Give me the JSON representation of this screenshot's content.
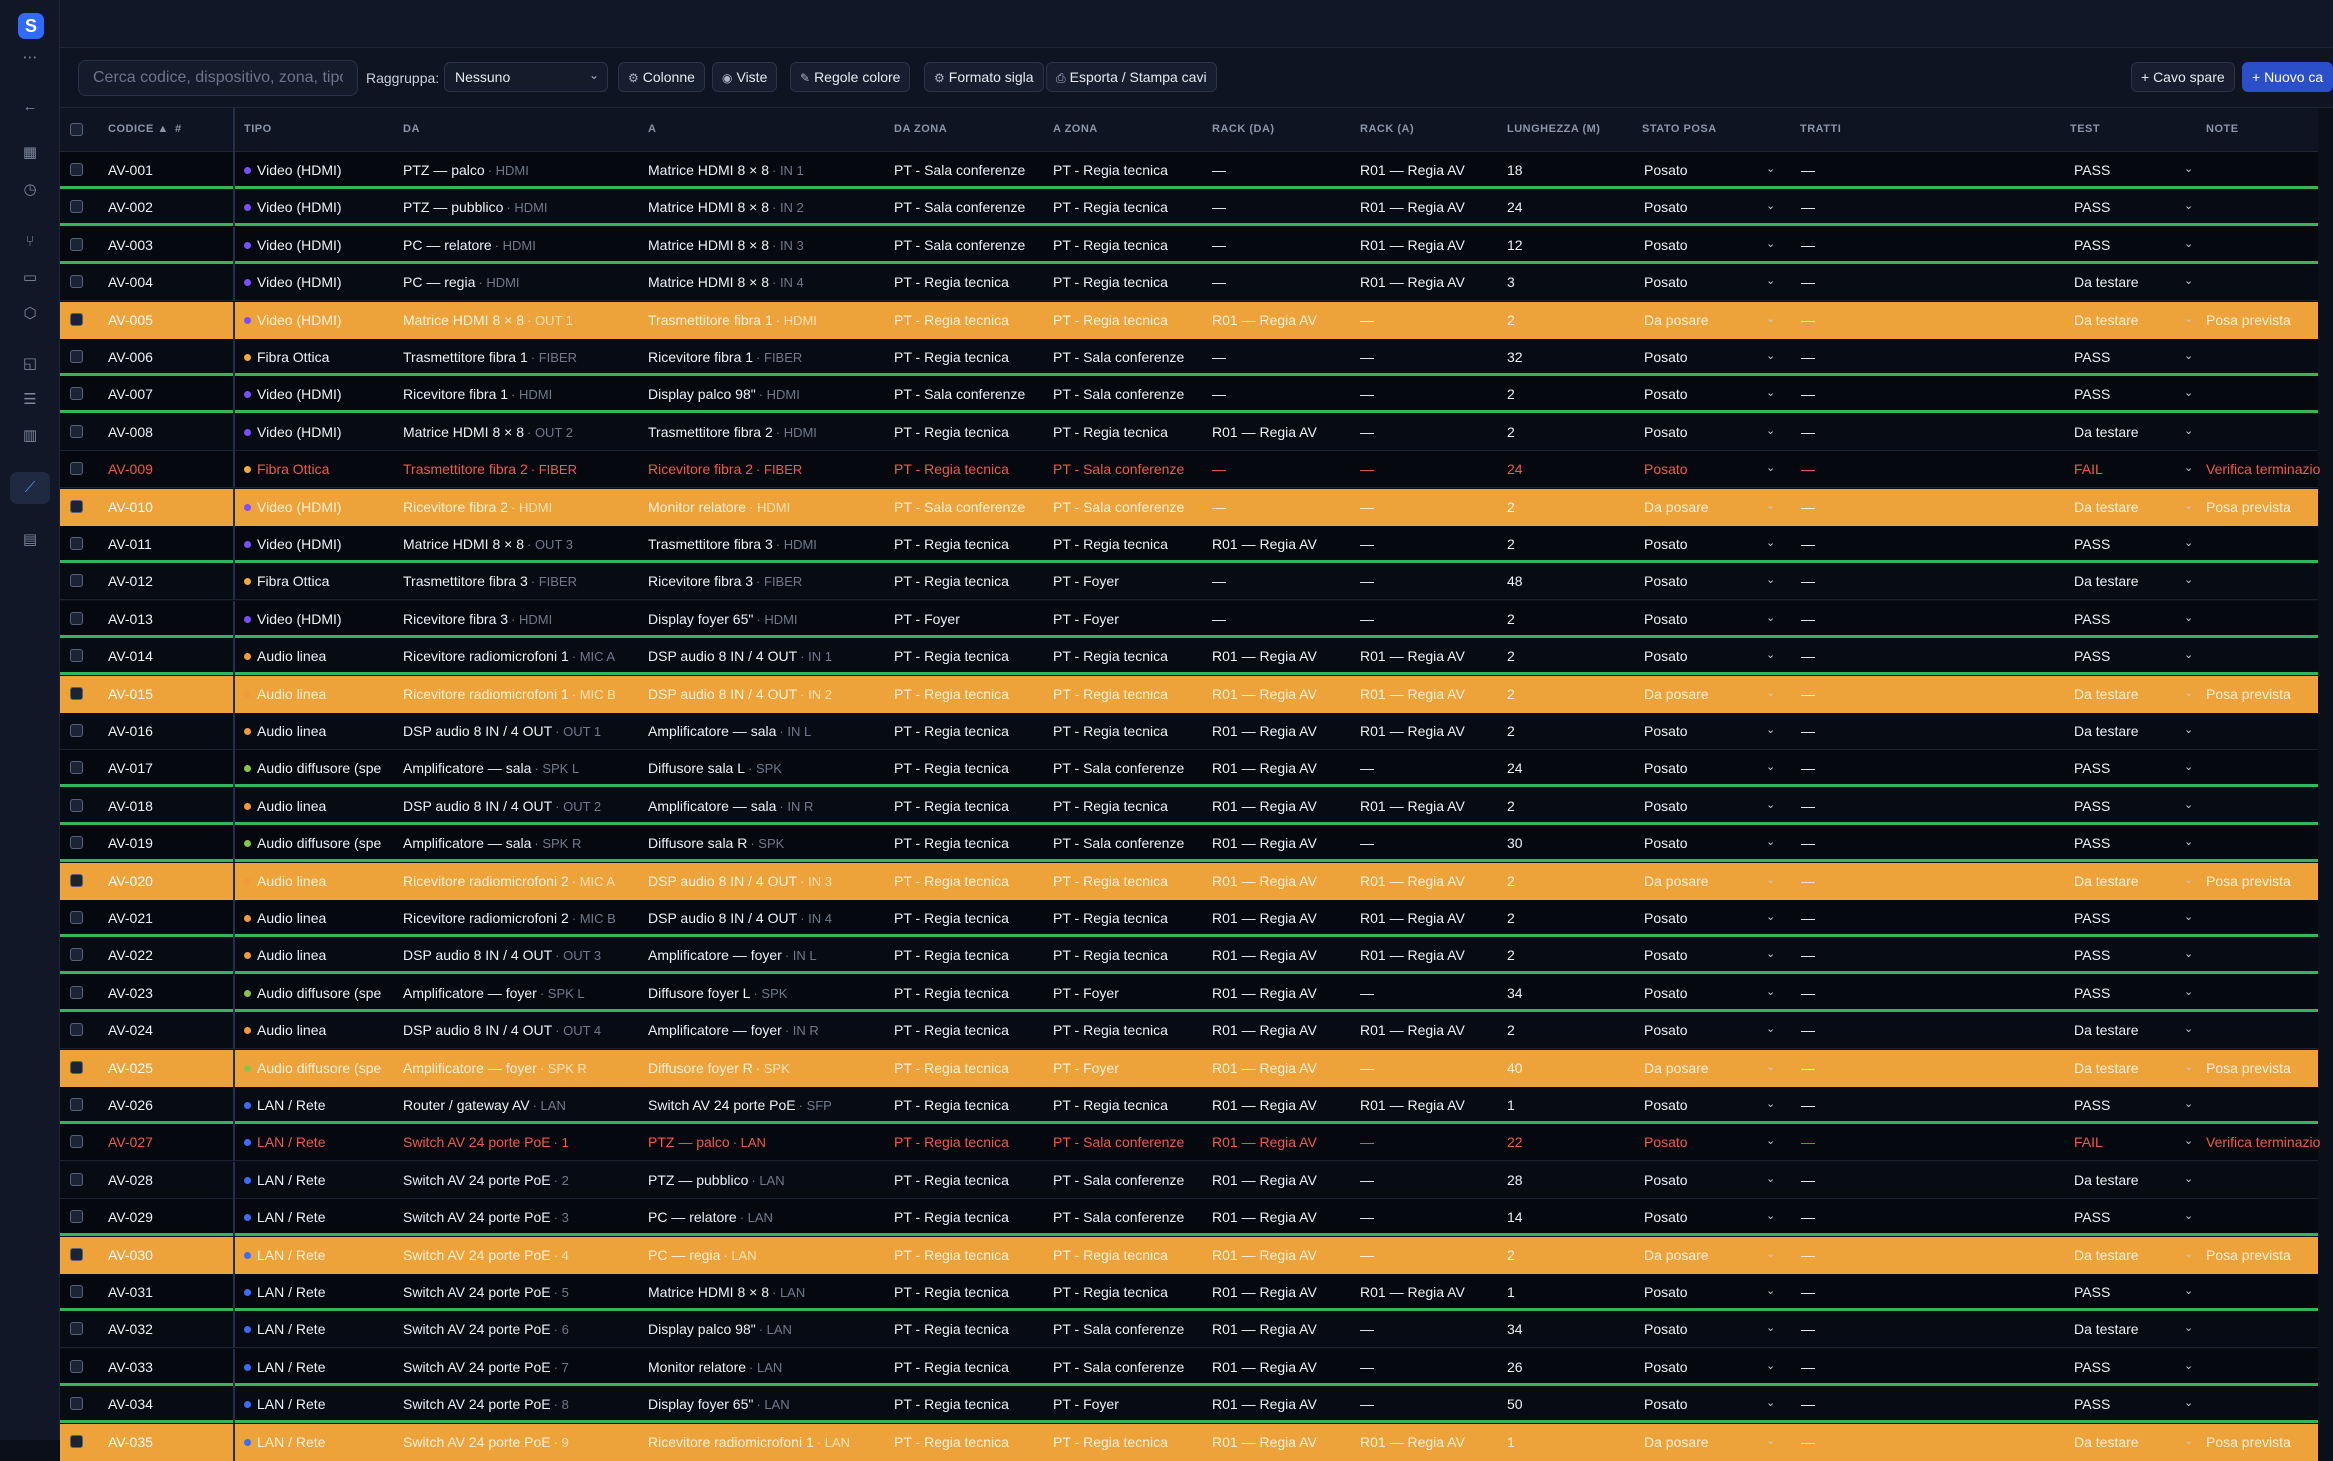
{
  "app": {
    "logo_letter": "S"
  },
  "toolbar": {
    "search_placeholder": "Cerca codice, dispositivo, zona, tipo",
    "group_label": "Raggruppa:",
    "group_value": "Nessuno",
    "btn_columns": "Colonne",
    "btn_views": "Viste",
    "btn_color_rules": "Regole colore",
    "btn_format": "Formato sigla",
    "btn_export": "Esporta / Stampa cavi",
    "btn_spare": "+ Cavo spare",
    "btn_new": "+ Nuovo ca"
  },
  "columns": {
    "code": "CODICE ▲",
    "hash": "#",
    "type": "TIPO",
    "from": "DA",
    "to": "A",
    "from_zone": "DA ZONA",
    "to_zone": "A ZONA",
    "rack_from": "RACK (DA)",
    "rack_to": "RACK (A)",
    "length": "LUNGHEZZA (M)",
    "status": "STATO POSA",
    "segments": "TRATTI",
    "test": "TEST",
    "notes": "NOTE"
  },
  "colors": {
    "video": "#7c4dff",
    "fiber": "#f2a93b",
    "audio": "#f29a3b",
    "speaker": "#8bc34a",
    "lan": "#3d6bff",
    "highlight": "#eda23a",
    "fail": "#f2584b",
    "pass_bar": "#35b55a"
  },
  "rows": [
    {
      "code": "AV-001",
      "type": "Video (HDMI)",
      "tcolor": "#7c4dff",
      "from": "PTZ — palco",
      "from_port": "HDMI",
      "to": "Matrice HDMI 8 × 8",
      "to_port": "IN 1",
      "from_zone": "PT - Sala conferenze",
      "to_zone": "PT - Regia tecnica",
      "rack_from": "—",
      "rack_to": "R01 — Regia AV",
      "length": "18",
      "status": "Posato",
      "segments": "—",
      "test": "PASS",
      "notes": "",
      "style": "pass"
    },
    {
      "code": "AV-002",
      "type": "Video (HDMI)",
      "tcolor": "#7c4dff",
      "from": "PTZ — pubblico",
      "from_port": "HDMI",
      "to": "Matrice HDMI 8 × 8",
      "to_port": "IN 2",
      "from_zone": "PT - Sala conferenze",
      "to_zone": "PT - Regia tecnica",
      "rack_from": "—",
      "rack_to": "R01 — Regia AV",
      "length": "24",
      "status": "Posato",
      "segments": "—",
      "test": "PASS",
      "notes": "",
      "style": "pass"
    },
    {
      "code": "AV-003",
      "type": "Video (HDMI)",
      "tcolor": "#7c4dff",
      "from": "PC — relatore",
      "from_port": "HDMI",
      "to": "Matrice HDMI 8 × 8",
      "to_port": "IN 3",
      "from_zone": "PT - Sala conferenze",
      "to_zone": "PT - Regia tecnica",
      "rack_from": "—",
      "rack_to": "R01 — Regia AV",
      "length": "12",
      "status": "Posato",
      "segments": "—",
      "test": "PASS",
      "notes": "",
      "style": "pass"
    },
    {
      "code": "AV-004",
      "type": "Video (HDMI)",
      "tcolor": "#7c4dff",
      "from": "PC — regia",
      "from_port": "HDMI",
      "to": "Matrice HDMI 8 × 8",
      "to_port": "IN 4",
      "from_zone": "PT - Regia tecnica",
      "to_zone": "PT - Regia tecnica",
      "rack_from": "—",
      "rack_to": "R01 — Regia AV",
      "length": "3",
      "status": "Posato",
      "segments": "—",
      "test": "Da testare",
      "notes": "",
      "style": "plain"
    },
    {
      "code": "AV-005",
      "type": "Video (HDMI)",
      "tcolor": "#7c4dff",
      "from": "Matrice HDMI 8 × 8",
      "from_port": "OUT 1",
      "to": "Trasmettitore fibra 1",
      "to_port": "HDMI",
      "from_zone": "PT - Regia tecnica",
      "to_zone": "PT - Regia tecnica",
      "rack_from": "R01 — Regia AV",
      "rack_to": "—",
      "length": "2",
      "status": "Da posare",
      "segments": "—",
      "test": "Da testare",
      "notes": "Posa prevista",
      "style": "orange"
    },
    {
      "code": "AV-006",
      "type": "Fibra Ottica",
      "tcolor": "#f2a93b",
      "from": "Trasmettitore fibra 1",
      "from_port": "FIBER",
      "to": "Ricevitore fibra 1",
      "to_port": "FIBER",
      "from_zone": "PT - Regia tecnica",
      "to_zone": "PT - Sala conferenze",
      "rack_from": "—",
      "rack_to": "—",
      "length": "32",
      "status": "Posato",
      "segments": "—",
      "test": "PASS",
      "notes": "",
      "style": "pass"
    },
    {
      "code": "AV-007",
      "type": "Video (HDMI)",
      "tcolor": "#7c4dff",
      "from": "Ricevitore fibra 1",
      "from_port": "HDMI",
      "to": "Display palco 98\"",
      "to_port": "HDMI",
      "from_zone": "PT - Sala conferenze",
      "to_zone": "PT - Sala conferenze",
      "rack_from": "—",
      "rack_to": "—",
      "length": "2",
      "status": "Posato",
      "segments": "—",
      "test": "PASS",
      "notes": "",
      "style": "pass"
    },
    {
      "code": "AV-008",
      "type": "Video (HDMI)",
      "tcolor": "#7c4dff",
      "from": "Matrice HDMI 8 × 8",
      "from_port": "OUT 2",
      "to": "Trasmettitore fibra 2",
      "to_port": "HDMI",
      "from_zone": "PT - Regia tecnica",
      "to_zone": "PT - Regia tecnica",
      "rack_from": "R01 — Regia AV",
      "rack_to": "—",
      "length": "2",
      "status": "Posato",
      "segments": "—",
      "test": "Da testare",
      "notes": "",
      "style": "plain"
    },
    {
      "code": "AV-009",
      "type": "Fibra Ottica",
      "tcolor": "#f2a93b",
      "from": "Trasmettitore fibra 2",
      "from_port": "FIBER",
      "to": "Ricevitore fibra 2",
      "to_port": "FIBER",
      "from_zone": "PT - Regia tecnica",
      "to_zone": "PT - Sala conferenze",
      "rack_from": "—",
      "rack_to": "—",
      "length": "24",
      "status": "Posato",
      "segments": "—",
      "test": "FAIL",
      "notes": "Verifica terminazio",
      "style": "fail"
    },
    {
      "code": "AV-010",
      "type": "Video (HDMI)",
      "tcolor": "#7c4dff",
      "from": "Ricevitore fibra 2",
      "from_port": "HDMI",
      "to": "Monitor relatore",
      "to_port": "HDMI",
      "from_zone": "PT - Sala conferenze",
      "to_zone": "PT - Sala conferenze",
      "rack_from": "—",
      "rack_to": "—",
      "length": "2",
      "status": "Da posare",
      "segments": "—",
      "test": "Da testare",
      "notes": "Posa prevista",
      "style": "orange"
    },
    {
      "code": "AV-011",
      "type": "Video (HDMI)",
      "tcolor": "#7c4dff",
      "from": "Matrice HDMI 8 × 8",
      "from_port": "OUT 3",
      "to": "Trasmettitore fibra 3",
      "to_port": "HDMI",
      "from_zone": "PT - Regia tecnica",
      "to_zone": "PT - Regia tecnica",
      "rack_from": "R01 — Regia AV",
      "rack_to": "—",
      "length": "2",
      "status": "Posato",
      "segments": "—",
      "test": "PASS",
      "notes": "",
      "style": "pass"
    },
    {
      "code": "AV-012",
      "type": "Fibra Ottica",
      "tcolor": "#f2a93b",
      "from": "Trasmettitore fibra 3",
      "from_port": "FIBER",
      "to": "Ricevitore fibra 3",
      "to_port": "FIBER",
      "from_zone": "PT - Regia tecnica",
      "to_zone": "PT - Foyer",
      "rack_from": "—",
      "rack_to": "—",
      "length": "48",
      "status": "Posato",
      "segments": "—",
      "test": "Da testare",
      "notes": "",
      "style": "plain"
    },
    {
      "code": "AV-013",
      "type": "Video (HDMI)",
      "tcolor": "#7c4dff",
      "from": "Ricevitore fibra 3",
      "from_port": "HDMI",
      "to": "Display foyer 65\"",
      "to_port": "HDMI",
      "from_zone": "PT - Foyer",
      "to_zone": "PT - Foyer",
      "rack_from": "—",
      "rack_to": "—",
      "length": "2",
      "status": "Posato",
      "segments": "—",
      "test": "PASS",
      "notes": "",
      "style": "pass"
    },
    {
      "code": "AV-014",
      "type": "Audio linea",
      "tcolor": "#f29a3b",
      "from": "Ricevitore radiomicrofoni 1",
      "from_port": "MIC A",
      "to": "DSP audio 8 IN / 4 OUT",
      "to_port": "IN 1",
      "from_zone": "PT - Regia tecnica",
      "to_zone": "PT - Regia tecnica",
      "rack_from": "R01 — Regia AV",
      "rack_to": "R01 — Regia AV",
      "length": "2",
      "status": "Posato",
      "segments": "—",
      "test": "PASS",
      "notes": "",
      "style": "pass"
    },
    {
      "code": "AV-015",
      "type": "Audio linea",
      "tcolor": "#f29a3b",
      "from": "Ricevitore radiomicrofoni 1",
      "from_port": "MIC B",
      "to": "DSP audio 8 IN / 4 OUT",
      "to_port": "IN 2",
      "from_zone": "PT - Regia tecnica",
      "to_zone": "PT - Regia tecnica",
      "rack_from": "R01 — Regia AV",
      "rack_to": "R01 — Regia AV",
      "length": "2",
      "status": "Da posare",
      "segments": "—",
      "test": "Da testare",
      "notes": "Posa prevista",
      "style": "orange"
    },
    {
      "code": "AV-016",
      "type": "Audio linea",
      "tcolor": "#f29a3b",
      "from": "DSP audio 8 IN / 4 OUT",
      "from_port": "OUT 1",
      "to": "Amplificatore — sala",
      "to_port": "IN L",
      "from_zone": "PT - Regia tecnica",
      "to_zone": "PT - Regia tecnica",
      "rack_from": "R01 — Regia AV",
      "rack_to": "R01 — Regia AV",
      "length": "2",
      "status": "Posato",
      "segments": "—",
      "test": "Da testare",
      "notes": "",
      "style": "plain"
    },
    {
      "code": "AV-017",
      "type": "Audio diffusore (spe",
      "tcolor": "#8bc34a",
      "from": "Amplificatore — sala",
      "from_port": "SPK L",
      "to": "Diffusore sala L",
      "to_port": "SPK",
      "from_zone": "PT - Regia tecnica",
      "to_zone": "PT - Sala conferenze",
      "rack_from": "R01 — Regia AV",
      "rack_to": "—",
      "length": "24",
      "status": "Posato",
      "segments": "—",
      "test": "PASS",
      "notes": "",
      "style": "pass"
    },
    {
      "code": "AV-018",
      "type": "Audio linea",
      "tcolor": "#f29a3b",
      "from": "DSP audio 8 IN / 4 OUT",
      "from_port": "OUT 2",
      "to": "Amplificatore — sala",
      "to_port": "IN R",
      "from_zone": "PT - Regia tecnica",
      "to_zone": "PT - Regia tecnica",
      "rack_from": "R01 — Regia AV",
      "rack_to": "R01 — Regia AV",
      "length": "2",
      "status": "Posato",
      "segments": "—",
      "test": "PASS",
      "notes": "",
      "style": "pass"
    },
    {
      "code": "AV-019",
      "type": "Audio diffusore (spe",
      "tcolor": "#8bc34a",
      "from": "Amplificatore — sala",
      "from_port": "SPK R",
      "to": "Diffusore sala R",
      "to_port": "SPK",
      "from_zone": "PT - Regia tecnica",
      "to_zone": "PT - Sala conferenze",
      "rack_from": "R01 — Regia AV",
      "rack_to": "—",
      "length": "30",
      "status": "Posato",
      "segments": "—",
      "test": "PASS",
      "notes": "",
      "style": "pass"
    },
    {
      "code": "AV-020",
      "type": "Audio linea",
      "tcolor": "#f29a3b",
      "from": "Ricevitore radiomicrofoni 2",
      "from_port": "MIC A",
      "to": "DSP audio 8 IN / 4 OUT",
      "to_port": "IN 3",
      "from_zone": "PT - Regia tecnica",
      "to_zone": "PT - Regia tecnica",
      "rack_from": "R01 — Regia AV",
      "rack_to": "R01 — Regia AV",
      "length": "2",
      "status": "Da posare",
      "segments": "—",
      "test": "Da testare",
      "notes": "Posa prevista",
      "style": "orange"
    },
    {
      "code": "AV-021",
      "type": "Audio linea",
      "tcolor": "#f29a3b",
      "from": "Ricevitore radiomicrofoni 2",
      "from_port": "MIC B",
      "to": "DSP audio 8 IN / 4 OUT",
      "to_port": "IN 4",
      "from_zone": "PT - Regia tecnica",
      "to_zone": "PT - Regia tecnica",
      "rack_from": "R01 — Regia AV",
      "rack_to": "R01 — Regia AV",
      "length": "2",
      "status": "Posato",
      "segments": "—",
      "test": "PASS",
      "notes": "",
      "style": "pass"
    },
    {
      "code": "AV-022",
      "type": "Audio linea",
      "tcolor": "#f29a3b",
      "from": "DSP audio 8 IN / 4 OUT",
      "from_port": "OUT 3",
      "to": "Amplificatore — foyer",
      "to_port": "IN L",
      "from_zone": "PT - Regia tecnica",
      "to_zone": "PT - Regia tecnica",
      "rack_from": "R01 — Regia AV",
      "rack_to": "R01 — Regia AV",
      "length": "2",
      "status": "Posato",
      "segments": "—",
      "test": "PASS",
      "notes": "",
      "style": "pass"
    },
    {
      "code": "AV-023",
      "type": "Audio diffusore (spe",
      "tcolor": "#8bc34a",
      "from": "Amplificatore — foyer",
      "from_port": "SPK L",
      "to": "Diffusore foyer L",
      "to_port": "SPK",
      "from_zone": "PT - Regia tecnica",
      "to_zone": "PT - Foyer",
      "rack_from": "R01 — Regia AV",
      "rack_to": "—",
      "length": "34",
      "status": "Posato",
      "segments": "—",
      "test": "PASS",
      "notes": "",
      "style": "pass"
    },
    {
      "code": "AV-024",
      "type": "Audio linea",
      "tcolor": "#f29a3b",
      "from": "DSP audio 8 IN / 4 OUT",
      "from_port": "OUT 4",
      "to": "Amplificatore — foyer",
      "to_port": "IN R",
      "from_zone": "PT - Regia tecnica",
      "to_zone": "PT - Regia tecnica",
      "rack_from": "R01 — Regia AV",
      "rack_to": "R01 — Regia AV",
      "length": "2",
      "status": "Posato",
      "segments": "—",
      "test": "Da testare",
      "notes": "",
      "style": "plain"
    },
    {
      "code": "AV-025",
      "type": "Audio diffusore (spe",
      "tcolor": "#8bc34a",
      "from": "Amplificatore — foyer",
      "from_port": "SPK R",
      "to": "Diffusore foyer R",
      "to_port": "SPK",
      "from_zone": "PT - Regia tecnica",
      "to_zone": "PT - Foyer",
      "rack_from": "R01 — Regia AV",
      "rack_to": "—",
      "length": "40",
      "status": "Da posare",
      "segments": "—",
      "test": "Da testare",
      "notes": "Posa prevista",
      "style": "orange"
    },
    {
      "code": "AV-026",
      "type": "LAN / Rete",
      "tcolor": "#3d6bff",
      "from": "Router / gateway AV",
      "from_port": "LAN",
      "to": "Switch AV 24 porte PoE",
      "to_port": "SFP",
      "from_zone": "PT - Regia tecnica",
      "to_zone": "PT - Regia tecnica",
      "rack_from": "R01 — Regia AV",
      "rack_to": "R01 — Regia AV",
      "length": "1",
      "status": "Posato",
      "segments": "—",
      "test": "PASS",
      "notes": "",
      "style": "pass"
    },
    {
      "code": "AV-027",
      "type": "LAN / Rete",
      "tcolor": "#3d6bff",
      "from": "Switch AV 24 porte PoE",
      "from_port": "1",
      "to": "PTZ — palco",
      "to_port": "LAN",
      "from_zone": "PT - Regia tecnica",
      "to_zone": "PT - Sala conferenze",
      "rack_from": "R01 — Regia AV",
      "rack_to": "—",
      "length": "22",
      "status": "Posato",
      "segments": "—",
      "test": "FAIL",
      "notes": "Verifica terminazio",
      "style": "fail"
    },
    {
      "code": "AV-028",
      "type": "LAN / Rete",
      "tcolor": "#3d6bff",
      "from": "Switch AV 24 porte PoE",
      "from_port": "2",
      "to": "PTZ — pubblico",
      "to_port": "LAN",
      "from_zone": "PT - Regia tecnica",
      "to_zone": "PT - Sala conferenze",
      "rack_from": "R01 — Regia AV",
      "rack_to": "—",
      "length": "28",
      "status": "Posato",
      "segments": "—",
      "test": "Da testare",
      "notes": "",
      "style": "plain"
    },
    {
      "code": "AV-029",
      "type": "LAN / Rete",
      "tcolor": "#3d6bff",
      "from": "Switch AV 24 porte PoE",
      "from_port": "3",
      "to": "PC — relatore",
      "to_port": "LAN",
      "from_zone": "PT - Regia tecnica",
      "to_zone": "PT - Sala conferenze",
      "rack_from": "R01 — Regia AV",
      "rack_to": "—",
      "length": "14",
      "status": "Posato",
      "segments": "—",
      "test": "PASS",
      "notes": "",
      "style": "pass"
    },
    {
      "code": "AV-030",
      "type": "LAN / Rete",
      "tcolor": "#3d6bff",
      "from": "Switch AV 24 porte PoE",
      "from_port": "4",
      "to": "PC — regia",
      "to_port": "LAN",
      "from_zone": "PT - Regia tecnica",
      "to_zone": "PT - Regia tecnica",
      "rack_from": "R01 — Regia AV",
      "rack_to": "—",
      "length": "2",
      "status": "Da posare",
      "segments": "—",
      "test": "Da testare",
      "notes": "Posa prevista",
      "style": "orange"
    },
    {
      "code": "AV-031",
      "type": "LAN / Rete",
      "tcolor": "#3d6bff",
      "from": "Switch AV 24 porte PoE",
      "from_port": "5",
      "to": "Matrice HDMI 8 × 8",
      "to_port": "LAN",
      "from_zone": "PT - Regia tecnica",
      "to_zone": "PT - Regia tecnica",
      "rack_from": "R01 — Regia AV",
      "rack_to": "R01 — Regia AV",
      "length": "1",
      "status": "Posato",
      "segments": "—",
      "test": "PASS",
      "notes": "",
      "style": "pass"
    },
    {
      "code": "AV-032",
      "type": "LAN / Rete",
      "tcolor": "#3d6bff",
      "from": "Switch AV 24 porte PoE",
      "from_port": "6",
      "to": "Display palco 98\"",
      "to_port": "LAN",
      "from_zone": "PT - Regia tecnica",
      "to_zone": "PT - Sala conferenze",
      "rack_from": "R01 — Regia AV",
      "rack_to": "—",
      "length": "34",
      "status": "Posato",
      "segments": "—",
      "test": "Da testare",
      "notes": "",
      "style": "plain"
    },
    {
      "code": "AV-033",
      "type": "LAN / Rete",
      "tcolor": "#3d6bff",
      "from": "Switch AV 24 porte PoE",
      "from_port": "7",
      "to": "Monitor relatore",
      "to_port": "LAN",
      "from_zone": "PT - Regia tecnica",
      "to_zone": "PT - Sala conferenze",
      "rack_from": "R01 — Regia AV",
      "rack_to": "—",
      "length": "26",
      "status": "Posato",
      "segments": "—",
      "test": "PASS",
      "notes": "",
      "style": "pass"
    },
    {
      "code": "AV-034",
      "type": "LAN / Rete",
      "tcolor": "#3d6bff",
      "from": "Switch AV 24 porte PoE",
      "from_port": "8",
      "to": "Display foyer 65\"",
      "to_port": "LAN",
      "from_zone": "PT - Regia tecnica",
      "to_zone": "PT - Foyer",
      "rack_from": "R01 — Regia AV",
      "rack_to": "—",
      "length": "50",
      "status": "Posato",
      "segments": "—",
      "test": "PASS",
      "notes": "",
      "style": "pass"
    },
    {
      "code": "AV-035",
      "type": "LAN / Rete",
      "tcolor": "#3d6bff",
      "from": "Switch AV 24 porte PoE",
      "from_port": "9",
      "to": "Ricevitore radiomicrofoni 1",
      "to_port": "LAN",
      "from_zone": "PT - Regia tecnica",
      "to_zone": "PT - Regia tecnica",
      "rack_from": "R01 — Regia AV",
      "rack_to": "R01 — Regia AV",
      "length": "1",
      "status": "Da posare",
      "segments": "—",
      "test": "Da testare",
      "notes": "Posa prevista",
      "style": "orange"
    }
  ]
}
